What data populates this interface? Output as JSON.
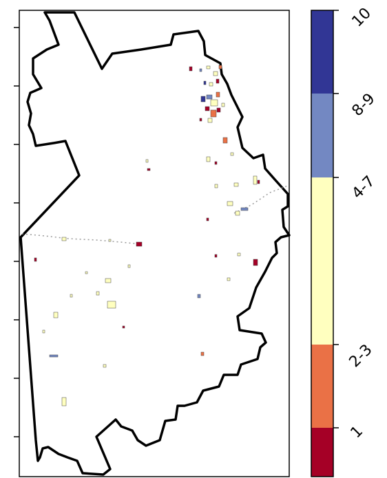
{
  "colorbar": {
    "bins": [
      {
        "label": "1",
        "color": "#a50026"
      },
      {
        "label": "2-3",
        "color": "#ea7146"
      },
      {
        "label": "4-7",
        "color": "#ffffbf"
      },
      {
        "label": "8-9",
        "color": "#7388c2"
      },
      {
        "label": "10",
        "color": "#313695"
      }
    ],
    "tick_labels": [
      "1",
      "2-3",
      "4-7",
      "8-9",
      "10"
    ]
  },
  "map": {
    "frame": true,
    "boundary_color": "#000000",
    "y_tick_count": 8
  }
}
